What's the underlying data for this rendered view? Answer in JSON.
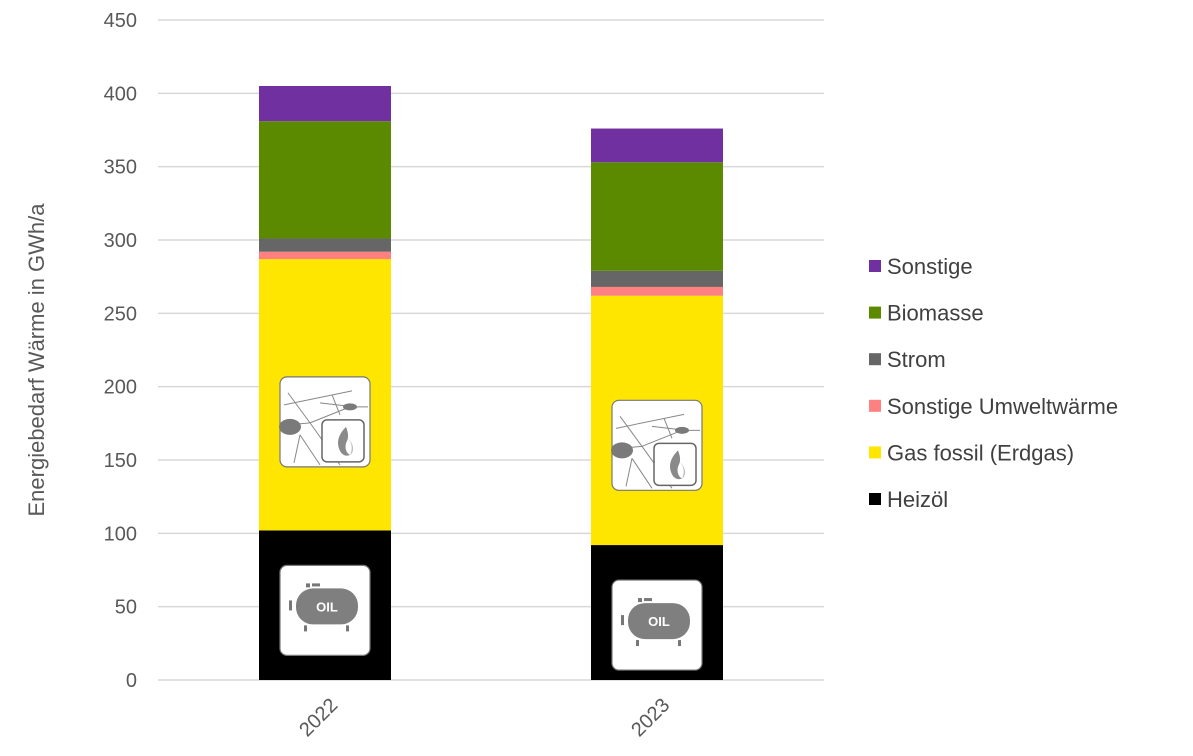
{
  "chart_data": {
    "type": "bar",
    "stacked": true,
    "title": "",
    "xlabel": "",
    "ylabel": "Energiebedarf Wärme in GWh/a",
    "ylim": [
      0,
      450
    ],
    "yticks": [
      0,
      50,
      100,
      150,
      200,
      250,
      300,
      350,
      400,
      450
    ],
    "grid": true,
    "legend_position": "right",
    "categories": [
      "2022",
      "2023"
    ],
    "series": [
      {
        "name": "Heizöl",
        "color": "#000000",
        "values": [
          102,
          92
        ]
      },
      {
        "name": "Gas fossil (Erdgas)",
        "color": "#FFE600",
        "values": [
          185,
          170
        ]
      },
      {
        "name": "Sonstige Umweltwärme",
        "color": "#FF8080",
        "values": [
          5,
          6
        ]
      },
      {
        "name": "Strom",
        "color": "#666666",
        "values": [
          9,
          11
        ]
      },
      {
        "name": "Biomasse",
        "color": "#5B8A00",
        "values": [
          80,
          74
        ]
      },
      {
        "name": "Sonstige",
        "color": "#7030A0",
        "values": [
          24,
          23
        ]
      }
    ],
    "icons": [
      {
        "name": "gas-network-icon",
        "series": "Gas fossil (Erdgas)"
      },
      {
        "name": "oil-tank-icon",
        "series": "Heizöl",
        "label": "OIL"
      }
    ]
  }
}
